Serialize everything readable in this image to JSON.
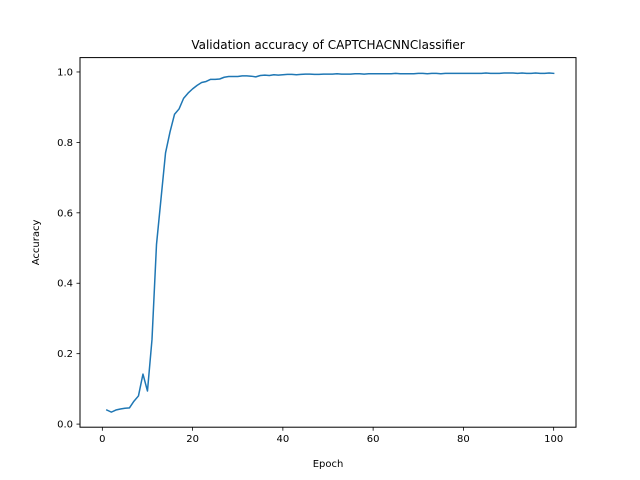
{
  "chart_data": {
    "type": "line",
    "title": "Validation accuracy of CAPTCHACNNClassifier",
    "xlabel": "Epoch",
    "ylabel": "Accuracy",
    "xlim": [
      -4.95,
      104.95
    ],
    "ylim": [
      -0.0088,
      1.0408
    ],
    "xticks": [
      0,
      20,
      40,
      60,
      80,
      100
    ],
    "xtick_labels": [
      "0",
      "20",
      "40",
      "60",
      "80",
      "100"
    ],
    "yticks": [
      0.0,
      0.2,
      0.4,
      0.6,
      0.8,
      1.0
    ],
    "ytick_labels": [
      "0.0",
      "0.2",
      "0.4",
      "0.6",
      "0.8",
      "1.0"
    ],
    "grid": false,
    "color": "#1f77b4",
    "series": [
      {
        "x": [
          1,
          2,
          3,
          4,
          5,
          6,
          7,
          8,
          9,
          10,
          11,
          12,
          13,
          14,
          15,
          16,
          17,
          18,
          19,
          20,
          21,
          22,
          23,
          24,
          25,
          26,
          27,
          28,
          29,
          30,
          31,
          32,
          33,
          34,
          35,
          36,
          37,
          38,
          39,
          40,
          41,
          42,
          43,
          44,
          45,
          46,
          47,
          48,
          49,
          50,
          51,
          52,
          53,
          54,
          55,
          56,
          57,
          58,
          59,
          60,
          61,
          62,
          63,
          64,
          65,
          66,
          67,
          68,
          69,
          70,
          71,
          72,
          73,
          74,
          75,
          76,
          77,
          78,
          79,
          80,
          81,
          82,
          83,
          84,
          85,
          86,
          87,
          88,
          89,
          90,
          91,
          92,
          93,
          94,
          95,
          96,
          97,
          98,
          99,
          100
        ],
        "values": [
          0.04,
          0.034,
          0.04,
          0.043,
          0.045,
          0.046,
          0.065,
          0.08,
          0.142,
          0.094,
          0.24,
          0.51,
          0.64,
          0.77,
          0.83,
          0.88,
          0.895,
          0.925,
          0.94,
          0.952,
          0.962,
          0.97,
          0.973,
          0.979,
          0.979,
          0.98,
          0.985,
          0.987,
          0.987,
          0.987,
          0.989,
          0.989,
          0.988,
          0.986,
          0.99,
          0.991,
          0.99,
          0.992,
          0.991,
          0.992,
          0.993,
          0.993,
          0.992,
          0.993,
          0.994,
          0.994,
          0.993,
          0.993,
          0.994,
          0.994,
          0.994,
          0.995,
          0.994,
          0.994,
          0.994,
          0.995,
          0.995,
          0.994,
          0.995,
          0.995,
          0.995,
          0.995,
          0.995,
          0.995,
          0.996,
          0.995,
          0.995,
          0.995,
          0.995,
          0.996,
          0.996,
          0.995,
          0.996,
          0.996,
          0.995,
          0.996,
          0.996,
          0.996,
          0.996,
          0.996,
          0.996,
          0.996,
          0.996,
          0.996,
          0.997,
          0.996,
          0.996,
          0.996,
          0.997,
          0.997,
          0.997,
          0.996,
          0.997,
          0.996,
          0.996,
          0.997,
          0.996,
          0.996,
          0.997,
          0.996
        ]
      }
    ]
  }
}
